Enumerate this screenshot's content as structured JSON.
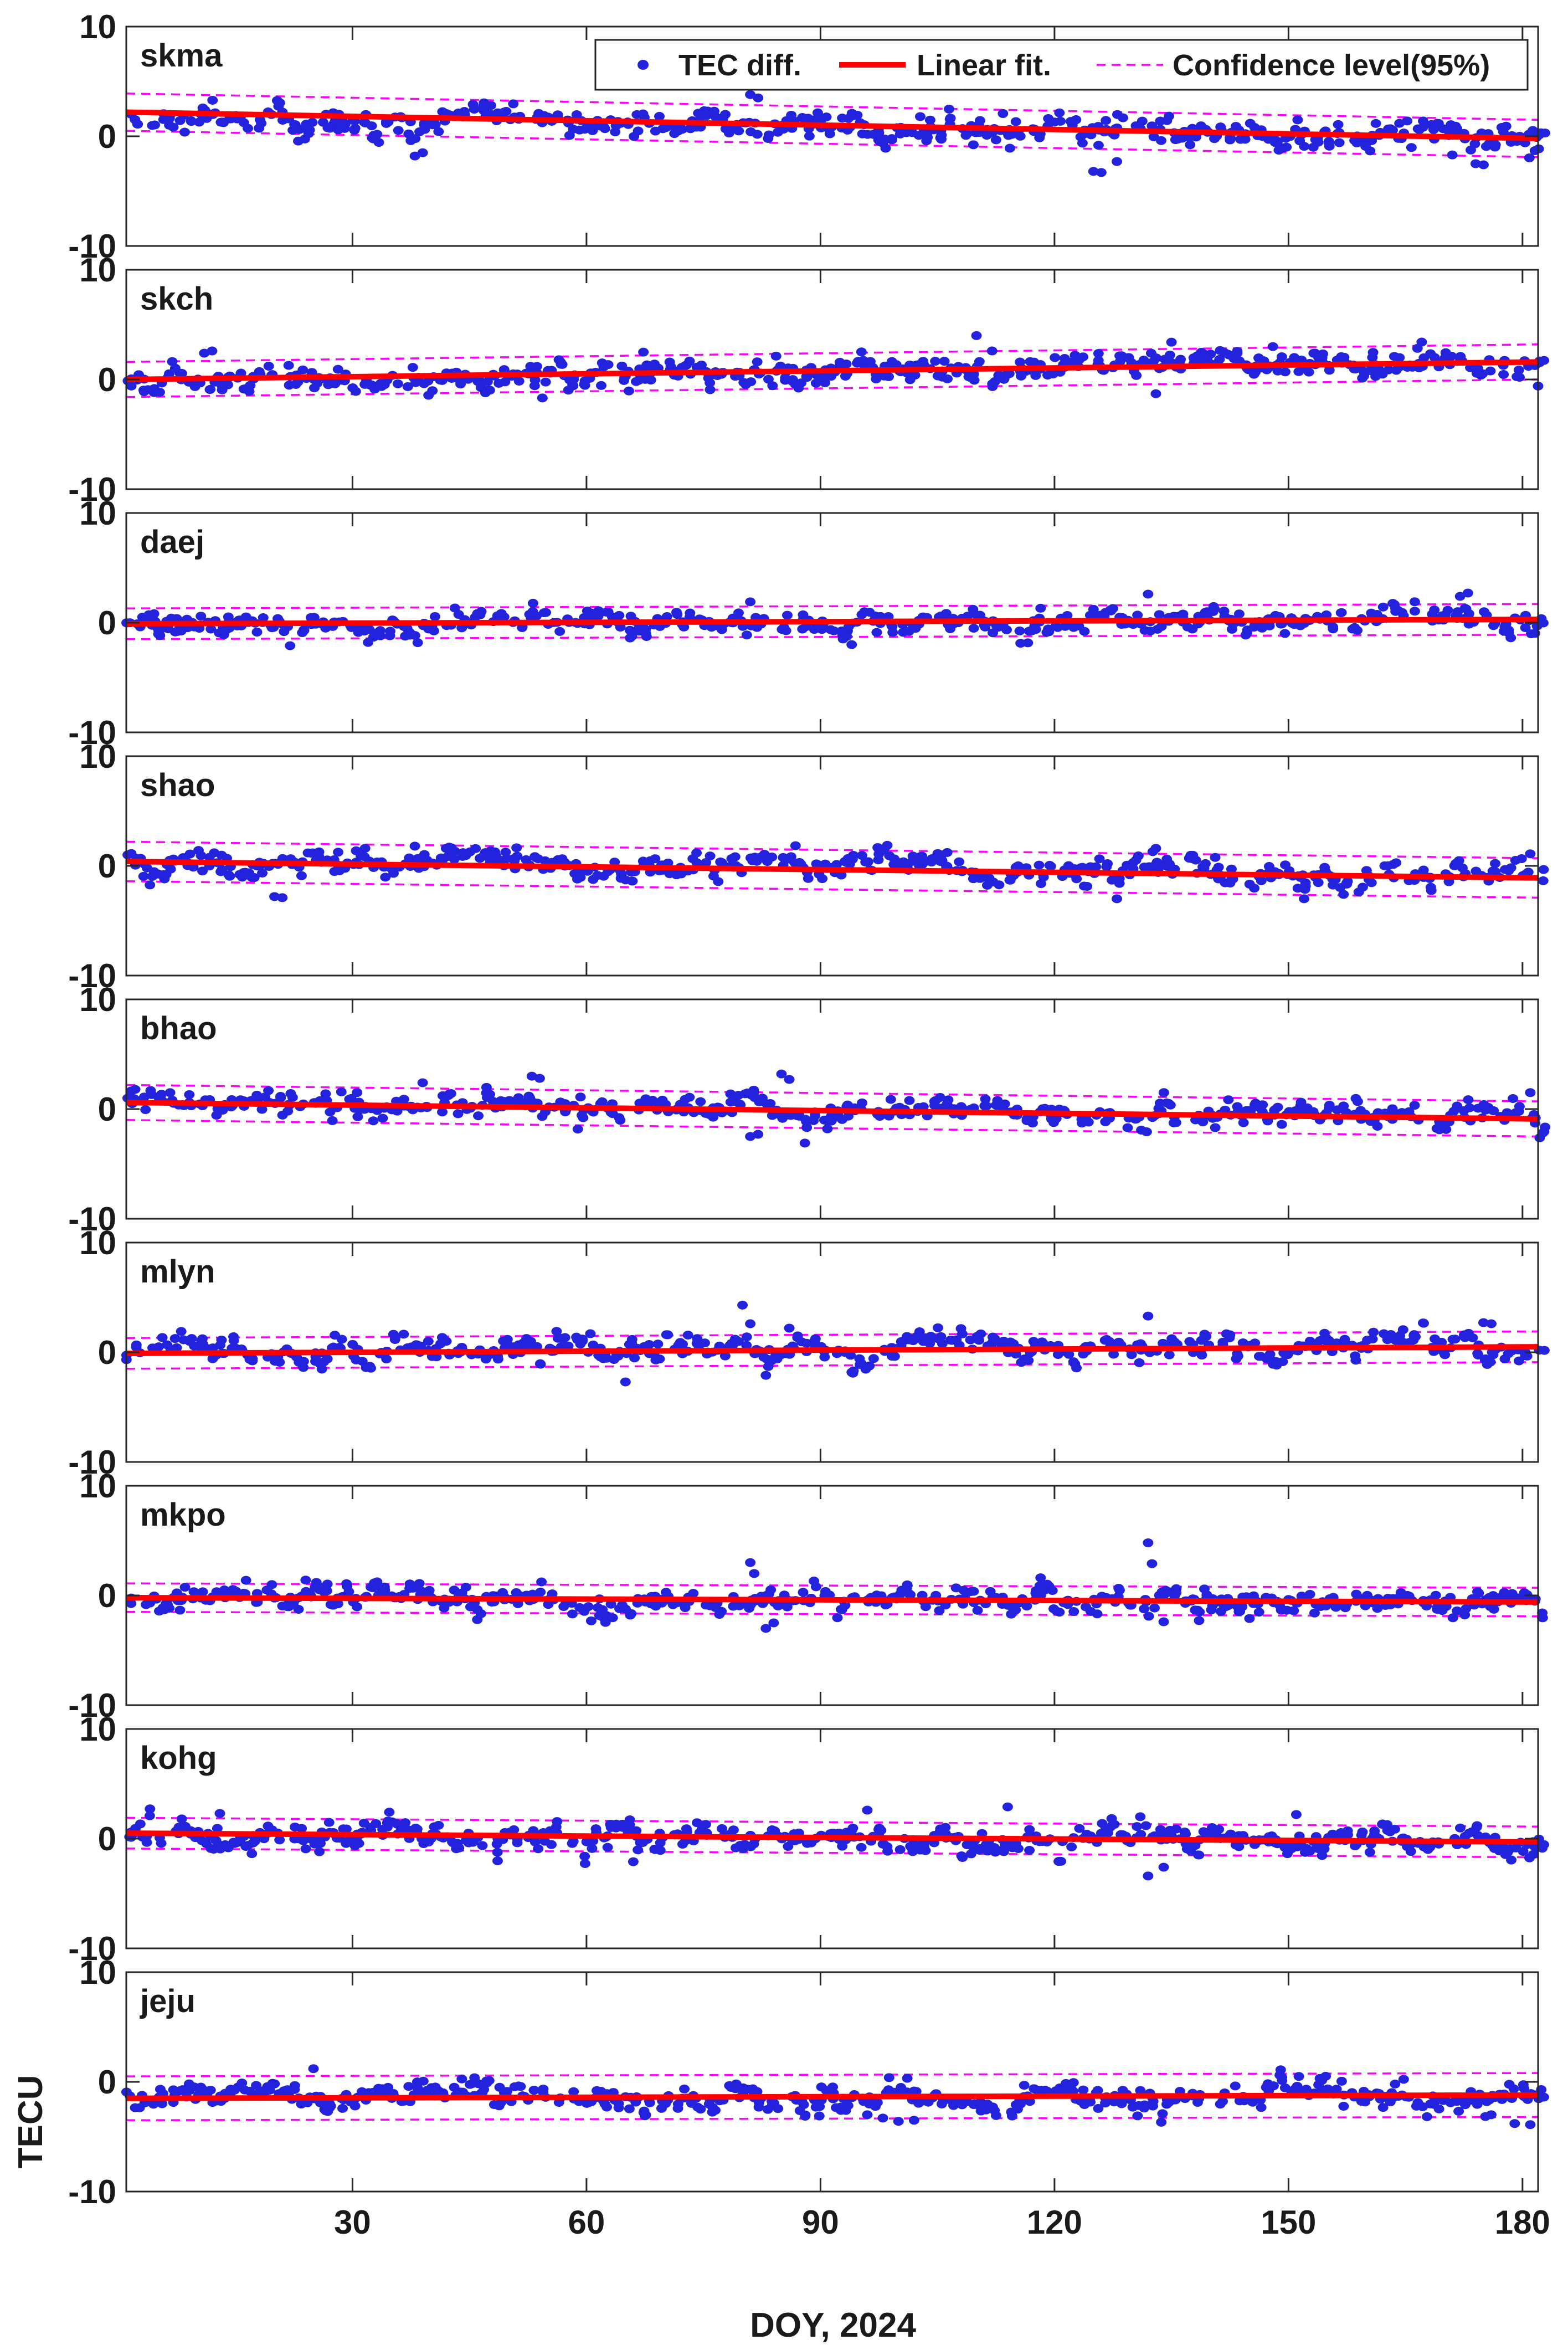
{
  "legend": {
    "entries": [
      {
        "label": "TEC diff.",
        "color": "#2323dd",
        "kind": "marker"
      },
      {
        "label": "Linear fit.",
        "color": "#ff0000",
        "kind": "line"
      },
      {
        "label": "Confidence level(95%)",
        "color": "#ff00ff",
        "kind": "dashed"
      }
    ]
  },
  "colors": {
    "tec_diff": "#2323dd",
    "linear_fit": "#ff0000",
    "confidence": "#ff00ff",
    "axes": "#262626"
  },
  "x_axis": {
    "title": "DOY, 2024",
    "ticks": [
      30,
      60,
      90,
      120,
      150,
      180
    ],
    "range": [
      1,
      182
    ]
  },
  "y_axis": {
    "title": "TECU",
    "ticks": [
      -10,
      0,
      10
    ],
    "range": [
      -10,
      10
    ]
  },
  "chart_data": {
    "type": "scatter",
    "x_label": "DOY, 2024",
    "y_label": "TECU",
    "xlim": [
      1,
      182
    ],
    "ylim": [
      -10,
      10
    ],
    "x_ticks": [
      30,
      60,
      90,
      120,
      150,
      180
    ],
    "y_ticks": [
      -10,
      0,
      10
    ],
    "grid": false,
    "legend_position": "top-right",
    "shared_x": true,
    "panels": [
      {
        "station": "skma",
        "fit": [
          2.2,
          -0.2
        ],
        "ci_halfwidth": 1.7,
        "noise": 0.9,
        "seed": 11,
        "anomalies": [
          [
            38,
            -1.8
          ],
          [
            39,
            -1.5
          ],
          [
            81,
            3.8
          ],
          [
            82,
            3.5
          ],
          [
            125,
            -3.2
          ],
          [
            126,
            -3.3
          ],
          [
            128,
            -2.3
          ],
          [
            171,
            -1.7
          ],
          [
            174,
            -2.5
          ],
          [
            175,
            -2.6
          ]
        ]
      },
      {
        "station": "skch",
        "fit": [
          0.0,
          1.6
        ],
        "ci_halfwidth": 1.6,
        "noise": 0.8,
        "seed": 23,
        "anomalies": [
          [
            11,
            2.4
          ],
          [
            12,
            2.6
          ],
          [
            110,
            4.0
          ],
          [
            112,
            2.6
          ],
          [
            135,
            3.4
          ],
          [
            133,
            -1.3
          ],
          [
            148,
            3.0
          ],
          [
            182,
            -0.6
          ]
        ]
      },
      {
        "station": "daej",
        "fit": [
          -0.1,
          0.3
        ],
        "ci_halfwidth": 1.4,
        "noise": 0.7,
        "seed": 37,
        "anomalies": [
          [
            22,
            -2.1
          ],
          [
            32,
            -1.8
          ],
          [
            81,
            1.9
          ],
          [
            94,
            -2.0
          ],
          [
            132,
            2.6
          ],
          [
            172,
            2.4
          ],
          [
            173,
            2.7
          ]
        ]
      },
      {
        "station": "shao",
        "fit": [
          0.4,
          -1.1
        ],
        "ci_halfwidth": 1.8,
        "noise": 0.8,
        "seed": 41,
        "anomalies": [
          [
            20,
            -2.8
          ],
          [
            21,
            -2.9
          ],
          [
            38,
            1.8
          ],
          [
            42,
            1.6
          ],
          [
            128,
            -3.0
          ],
          [
            133,
            1.6
          ],
          [
            152,
            -3.0
          ],
          [
            181,
            1.1
          ]
        ]
      },
      {
        "station": "bhao",
        "fit": [
          0.6,
          -0.9
        ],
        "ci_halfwidth": 1.6,
        "noise": 0.8,
        "seed": 53,
        "anomalies": [
          [
            39,
            2.4
          ],
          [
            53,
            3.0
          ],
          [
            54,
            2.8
          ],
          [
            81,
            -2.5
          ],
          [
            82,
            -2.3
          ],
          [
            85,
            3.2
          ],
          [
            86,
            2.7
          ],
          [
            88,
            -3.1
          ],
          [
            181,
            1.5
          ]
        ]
      },
      {
        "station": "mlyn",
        "fit": [
          -0.1,
          0.5
        ],
        "ci_halfwidth": 1.4,
        "noise": 0.7,
        "seed": 67,
        "anomalies": [
          [
            65,
            -2.7
          ],
          [
            80,
            4.3
          ],
          [
            81,
            2.6
          ],
          [
            83,
            -2.1
          ],
          [
            86,
            2.2
          ],
          [
            132,
            3.3
          ],
          [
            175,
            2.7
          ],
          [
            176,
            2.6
          ]
        ]
      },
      {
        "station": "mkpo",
        "fit": [
          -0.2,
          -0.6
        ],
        "ci_halfwidth": 1.3,
        "noise": 0.7,
        "seed": 71,
        "anomalies": [
          [
            24,
            1.4
          ],
          [
            46,
            -2.2
          ],
          [
            81,
            3.0
          ],
          [
            81.5,
            2.0
          ],
          [
            83,
            -3.0
          ],
          [
            84,
            -2.5
          ],
          [
            132,
            4.8
          ],
          [
            132.5,
            2.9
          ],
          [
            134,
            -2.4
          ],
          [
            145,
            -2.1
          ]
        ]
      },
      {
        "station": "kohg",
        "fit": [
          0.5,
          -0.3
        ],
        "ci_halfwidth": 1.4,
        "noise": 0.8,
        "seed": 83,
        "anomalies": [
          [
            13,
            2.3
          ],
          [
            66,
            -2.1
          ],
          [
            96,
            2.6
          ],
          [
            114,
            2.9
          ],
          [
            131,
            2.0
          ],
          [
            132,
            -3.4
          ],
          [
            134,
            -2.6
          ],
          [
            151,
            2.2
          ]
        ]
      },
      {
        "station": "jeju",
        "fit": [
          -1.5,
          -1.2
        ],
        "ci_halfwidth": 2.0,
        "noise": 0.8,
        "seed": 97,
        "anomalies": [
          [
            25,
            1.2
          ],
          [
            96,
            -3.0
          ],
          [
            98,
            -3.3
          ],
          [
            100,
            -3.6
          ],
          [
            102,
            -3.5
          ],
          [
            149,
            1.1
          ],
          [
            176,
            -3.0
          ],
          [
            179,
            -3.8
          ],
          [
            181,
            -3.9
          ]
        ]
      }
    ]
  }
}
